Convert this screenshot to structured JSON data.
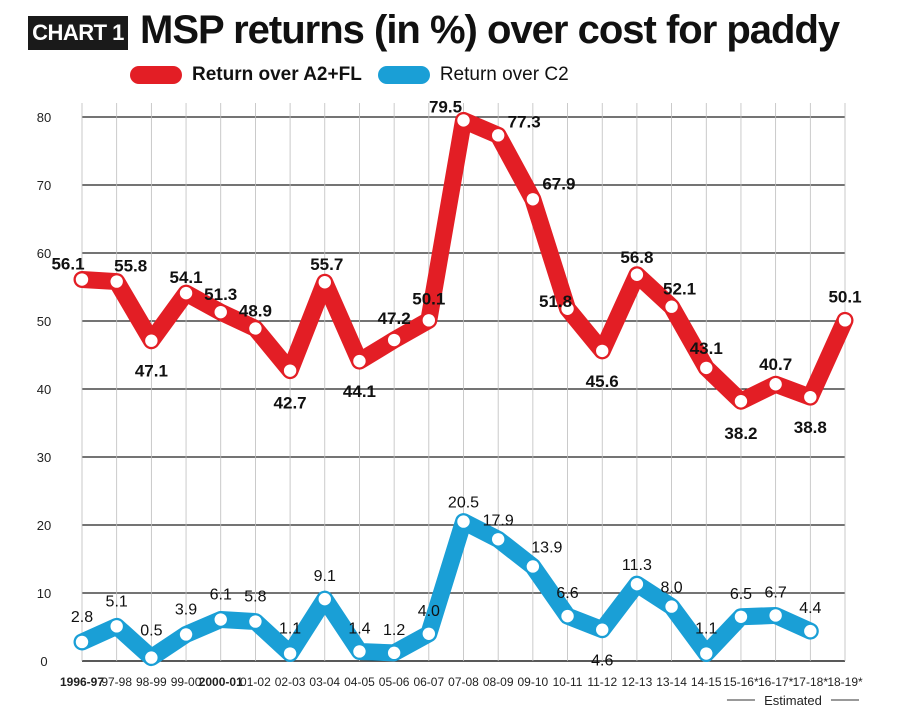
{
  "header": {
    "badge": "CHART 1",
    "title": "MSP returns (in %) over cost for paddy"
  },
  "colors": {
    "series_a2fl": "#e31e25",
    "series_c2": "#1a9fd6",
    "grid": "#222222"
  },
  "chart_data": {
    "type": "line",
    "title": "MSP returns (in %) over cost for paddy",
    "xlabel": "",
    "ylabel": "",
    "ylim": [
      0,
      80
    ],
    "yticks": [
      0,
      10,
      20,
      30,
      40,
      50,
      60,
      70,
      80
    ],
    "grid": true,
    "legend_position": "top-left",
    "categories": [
      "1996-97",
      "97-98",
      "98-99",
      "99-00",
      "2000-01",
      "01-02",
      "02-03",
      "03-04",
      "04-05",
      "05-06",
      "06-07",
      "07-08",
      "08-09",
      "09-10",
      "10-11",
      "11-12",
      "12-13",
      "13-14",
      "14-15",
      "15-16*",
      "16-17*",
      "17-18*",
      "18-19*"
    ],
    "bold_categories": [
      "1996-97",
      "2000-01"
    ],
    "series": [
      {
        "name": "Return over A2+FL",
        "color": "#e31e25",
        "values": [
          56.1,
          55.8,
          47.1,
          54.1,
          51.3,
          48.9,
          42.7,
          55.7,
          44.1,
          47.2,
          50.1,
          79.5,
          77.3,
          67.9,
          51.8,
          45.6,
          56.8,
          52.1,
          43.1,
          38.2,
          40.7,
          38.8,
          50.1
        ],
        "labels": [
          "56.1",
          "55.8",
          "47.1",
          "54.1",
          "51.3",
          "48.9",
          "42.7",
          "55.7",
          "44.1",
          "47.2",
          "50.1",
          "79.5",
          "77.3",
          "67.9",
          "51.8",
          "45.6",
          "56.8",
          "52.1",
          "43.1",
          "38.2",
          "40.7",
          "38.8",
          "50.1"
        ]
      },
      {
        "name": "Return over C2",
        "color": "#1a9fd6",
        "values": [
          2.8,
          5.1,
          0.5,
          3.9,
          6.1,
          5.8,
          1.1,
          9.1,
          1.4,
          1.2,
          4.0,
          20.5,
          17.9,
          13.9,
          6.6,
          4.6,
          11.3,
          8.0,
          1.1,
          6.5,
          6.7,
          4.4,
          null
        ],
        "labels": [
          "2.8",
          "5.1",
          "0.5",
          "3.9",
          "6.1",
          "5.8",
          "1.1",
          "9.1",
          "1.4",
          "1.2",
          "4.0",
          "20.5",
          "17.9",
          "13.9",
          "6.6",
          "4.6",
          "11.3",
          "8.0",
          "1.1",
          "6.5",
          "6.7",
          "4.4",
          null
        ]
      }
    ],
    "annotations": [
      {
        "text": "Estimated",
        "applies_to": [
          "15-16*",
          "16-17*",
          "17-18*",
          "18-19*"
        ]
      }
    ]
  }
}
